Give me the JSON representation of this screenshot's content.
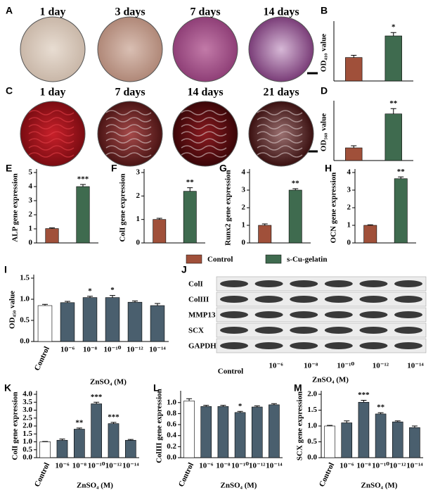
{
  "image_panels": [
    {
      "label": "A",
      "captions": [
        "1 day",
        "3 days",
        "7 days",
        "14 days"
      ]
    },
    {
      "label": "C",
      "captions": [
        "1 day",
        "7 days",
        "14 days",
        "21 days"
      ]
    }
  ],
  "legend": [
    {
      "name": "Control",
      "color": "#a0503a"
    },
    {
      "name": "s-Cu-gelatin",
      "color": "#3f6b4f"
    }
  ],
  "blot": {
    "label": "J",
    "rows": [
      "ColI",
      "ColIII",
      "MMP13",
      "SCX",
      "GAPDH"
    ],
    "columns": [
      "Control",
      "10⁻⁶",
      "10⁻⁸",
      "10⁻¹⁰",
      "10⁻¹²",
      "10⁻¹⁴"
    ],
    "xlabel": "ZnSO₄ (M)"
  },
  "chart_data": [
    {
      "type": "bar",
      "label": "B",
      "ylabel": "OD₄₁₀ value",
      "categories": [
        null,
        null
      ],
      "values": [
        1.25,
        2.4
      ],
      "errors": [
        0.12,
        0.18
      ],
      "colors": [
        "#a0503a",
        "#3f6b4f"
      ],
      "annotations": [
        null,
        "*"
      ],
      "ylim": [
        0,
        3
      ]
    },
    {
      "type": "bar",
      "label": "D",
      "ylabel": "OD₅₆₀ value",
      "categories": [
        null,
        null
      ],
      "values": [
        0.72,
        2.65
      ],
      "errors": [
        0.12,
        0.3
      ],
      "colors": [
        "#a0503a",
        "#3f6b4f"
      ],
      "annotations": [
        null,
        "**"
      ],
      "ylim": [
        0,
        3.2
      ]
    },
    {
      "type": "bar",
      "label": "E",
      "ylabel": "ALP gene expression",
      "categories": [
        null,
        null
      ],
      "values": [
        1.02,
        4.0
      ],
      "errors": [
        0.05,
        0.15
      ],
      "colors": [
        "#a0503a",
        "#3f6b4f"
      ],
      "annotations": [
        null,
        "***"
      ],
      "ylim": [
        0,
        5
      ],
      "yticks": [
        0,
        1,
        2,
        3,
        4,
        5
      ]
    },
    {
      "type": "bar",
      "label": "F",
      "ylabel": "ColI gene expression",
      "categories": [
        null,
        null
      ],
      "values": [
        1.0,
        2.2
      ],
      "errors": [
        0.05,
        0.15
      ],
      "colors": [
        "#a0503a",
        "#3f6b4f"
      ],
      "annotations": [
        null,
        "**"
      ],
      "ylim": [
        0,
        3
      ],
      "yticks": [
        0,
        1,
        2,
        3
      ]
    },
    {
      "type": "bar",
      "label": "G",
      "ylabel": "Runx2 gene expression",
      "categories": [
        null,
        null
      ],
      "values": [
        1.0,
        3.0
      ],
      "errors": [
        0.08,
        0.08
      ],
      "colors": [
        "#a0503a",
        "#3f6b4f"
      ],
      "annotations": [
        null,
        "**"
      ],
      "ylim": [
        0,
        4
      ],
      "yticks": [
        0,
        1,
        2,
        3,
        4
      ]
    },
    {
      "type": "bar",
      "label": "H",
      "ylabel": "OCN gene expression",
      "categories": [
        null,
        null
      ],
      "values": [
        1.0,
        3.65
      ],
      "errors": [
        0.03,
        0.1
      ],
      "colors": [
        "#a0503a",
        "#3f6b4f"
      ],
      "annotations": [
        null,
        "**"
      ],
      "ylim": [
        0,
        4
      ],
      "yticks": [
        0,
        1,
        2,
        3,
        4
      ]
    },
    {
      "type": "bar",
      "label": "I",
      "ylabel": "OD₄₅₀ value",
      "xlabel": "ZnSO₄ (M)",
      "categories": [
        "Control",
        "10⁻⁶",
        "10⁻⁸",
        "10⁻¹⁰",
        "10⁻¹²",
        "10⁻¹⁴"
      ],
      "values": [
        0.85,
        0.92,
        1.04,
        1.04,
        0.93,
        0.85
      ],
      "errors": [
        0.03,
        0.03,
        0.03,
        0.05,
        0.03,
        0.05
      ],
      "colors": [
        "#ffffff",
        "#4a5f6e",
        "#4a5f6e",
        "#4a5f6e",
        "#4a5f6e",
        "#4a5f6e"
      ],
      "annotations": [
        null,
        null,
        "*",
        "*",
        null,
        null
      ],
      "ylim": [
        0,
        1.5
      ],
      "yticks": [
        {
          "value": 0,
          "label": "0.0"
        },
        {
          "value": 0.5,
          "label": "0.5"
        },
        {
          "value": 1,
          "label": "1.0"
        },
        {
          "value": 1.5,
          "label": "1.5"
        }
      ]
    },
    {
      "type": "bar",
      "label": "K",
      "ylabel": "ColI gene expression",
      "xlabel": "ZnSO₄ (M)",
      "categories": [
        "Control",
        "10⁻⁶",
        "10⁻⁸",
        "10⁻¹⁰",
        "10⁻¹²",
        "10⁻¹⁴"
      ],
      "values": [
        1.0,
        1.1,
        1.8,
        3.4,
        2.15,
        1.1
      ],
      "errors": [
        0.02,
        0.08,
        0.07,
        0.1,
        0.08,
        0.05
      ],
      "colors": [
        "#ffffff",
        "#4a5f6e",
        "#4a5f6e",
        "#4a5f6e",
        "#4a5f6e",
        "#4a5f6e"
      ],
      "annotations": [
        null,
        null,
        "**",
        "***",
        "***",
        null
      ],
      "ylim": [
        0,
        4
      ],
      "yticks": [
        {
          "value": 0,
          "label": "0.0"
        },
        {
          "value": 0.5,
          "label": "0.5"
        },
        {
          "value": 1,
          "label": "1.0"
        },
        {
          "value": 1.5,
          "label": "1.5"
        },
        {
          "value": 2,
          "label": "2.0"
        },
        {
          "value": 2.5,
          "label": "2.5"
        },
        {
          "value": 3,
          "label": "3.0"
        },
        {
          "value": 3.5,
          "label": "3.5"
        },
        {
          "value": 4,
          "label": "4.0"
        }
      ]
    },
    {
      "type": "bar",
      "label": "L",
      "ylabel": "ColIII gene expression",
      "xlabel": "ZnSO₄ (M)",
      "categories": [
        "Control",
        "10⁻⁶",
        "10⁻⁸",
        "10⁻¹⁰",
        "10⁻¹²",
        "10⁻¹⁴"
      ],
      "values": [
        1.03,
        0.93,
        0.93,
        0.82,
        0.92,
        0.96
      ],
      "errors": [
        0.04,
        0.02,
        0.02,
        0.02,
        0.02,
        0.02
      ],
      "colors": [
        "#ffffff",
        "#4a5f6e",
        "#4a5f6e",
        "#4a5f6e",
        "#4a5f6e",
        "#4a5f6e"
      ],
      "annotations": [
        null,
        null,
        null,
        "*",
        null,
        null
      ],
      "ylim": [
        0,
        1.15
      ],
      "yticks": [
        {
          "value": 0,
          "label": "0.0"
        },
        0.2,
        0.4,
        0.6,
        0.8,
        {
          "value": 1,
          "label": "1.0"
        }
      ]
    },
    {
      "type": "bar",
      "label": "M",
      "ylabel": "SCX gene expression",
      "xlabel": "ZnSO₄ (M)",
      "categories": [
        "Control",
        "10⁻⁶",
        "10⁻⁸",
        "10⁻¹⁰",
        "10⁻¹²",
        "10⁻¹⁴"
      ],
      "values": [
        1.0,
        1.1,
        1.75,
        1.38,
        1.13,
        0.95
      ],
      "errors": [
        0.02,
        0.06,
        0.06,
        0.04,
        0.03,
        0.05
      ],
      "colors": [
        "#ffffff",
        "#4a5f6e",
        "#4a5f6e",
        "#4a5f6e",
        "#4a5f6e",
        "#4a5f6e"
      ],
      "annotations": [
        null,
        null,
        "***",
        "**",
        null,
        null
      ],
      "ylim": [
        0,
        2
      ],
      "yticks": [
        {
          "value": 0,
          "label": "0.0"
        },
        0.5,
        {
          "value": 1,
          "label": "1.0"
        },
        1.5,
        {
          "value": 2,
          "label": "2.0"
        }
      ]
    }
  ]
}
